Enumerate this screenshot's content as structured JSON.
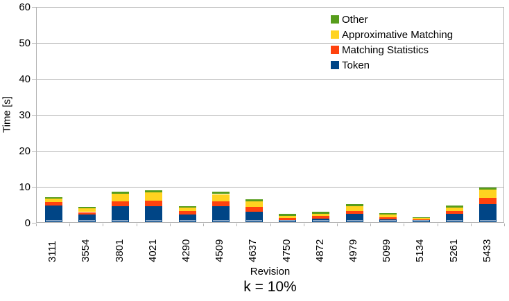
{
  "chart_data": {
    "type": "bar",
    "stacked": true,
    "title": "k = 10%",
    "xlabel": "Revision",
    "ylabel": "Time [s]",
    "ylim": [
      0,
      60
    ],
    "ytick_labels": [
      "0",
      "10",
      "20",
      "30",
      "40",
      "50",
      "60"
    ],
    "grid": true,
    "grid_color": "#b3b3b3",
    "bar_base_stripe_color": "#87a5c6",
    "categories": [
      "3111",
      "3554",
      "3801",
      "4021",
      "4290",
      "4509",
      "4637",
      "4750",
      "4872",
      "4979",
      "5099",
      "5134",
      "5261",
      "5433"
    ],
    "series": [
      {
        "name": "Token",
        "color": "#004586",
        "values": [
          4.6,
          2.1,
          4.4,
          4.4,
          2.2,
          4.4,
          2.9,
          0.6,
          1.0,
          2.3,
          0.8,
          0.55,
          2.3,
          5.1
        ]
      },
      {
        "name": "Matching Statistics",
        "color": "#FF420E",
        "values": [
          0.9,
          0.7,
          1.4,
          1.5,
          0.9,
          1.3,
          1.3,
          0.6,
          0.65,
          0.8,
          0.6,
          0.15,
          0.8,
          1.6
        ]
      },
      {
        "name": "Approximative Matching",
        "color": "#FFD320",
        "values": [
          1.0,
          1.1,
          2.1,
          2.4,
          0.9,
          2.1,
          1.5,
          0.6,
          0.65,
          1.4,
          0.7,
          0.4,
          1.0,
          2.4
        ]
      },
      {
        "name": "Other",
        "color": "#579D1C",
        "values": [
          0.4,
          0.4,
          0.6,
          0.5,
          0.45,
          0.6,
          0.6,
          0.5,
          0.55,
          0.6,
          0.5,
          0.3,
          0.5,
          0.6
        ]
      }
    ],
    "legend": {
      "position": "top-right",
      "order_top_to_bottom": [
        "Other",
        "Approximative Matching",
        "Matching Statistics",
        "Token"
      ]
    }
  }
}
